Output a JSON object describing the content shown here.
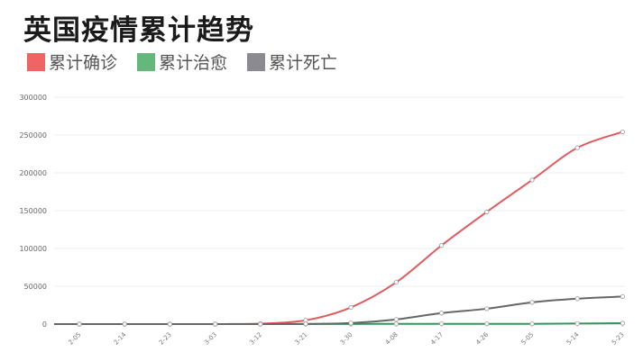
{
  "title": "英国疫情累计趋势",
  "legend": [
    {
      "label": "累计确诊",
      "color": "#f06464"
    },
    {
      "label": "累计治愈",
      "color": "#65b87b"
    },
    {
      "label": "累计死亡",
      "color": "#8a8a90"
    }
  ],
  "chart_data": {
    "type": "line",
    "title": "英国疫情累计趋势",
    "xlabel": "",
    "ylabel": "",
    "ylim": [
      0,
      300000
    ],
    "yticks": [
      0,
      50000,
      100000,
      150000,
      200000,
      250000,
      300000
    ],
    "xtick_labels": [
      "2-05",
      "2-14",
      "2-23",
      "3-03",
      "3-12",
      "3-21",
      "3-30",
      "4-08",
      "4-17",
      "4-26",
      "5-05",
      "5-14",
      "5-23"
    ],
    "grid": true,
    "legend_position": "top-left",
    "series": [
      {
        "name": "累计确诊",
        "color": "#e05a5e",
        "values": [
          0,
          8,
          9,
          23,
          590,
          5018,
          22141,
          55242,
          104000,
          148377,
          190584,
          233151,
          254195
        ]
      },
      {
        "name": "累计治愈",
        "color": "#2e9a5a",
        "values": [
          0,
          0,
          0,
          0,
          18,
          65,
          135,
          300,
          344,
          344,
          344,
          800,
          1200
        ]
      },
      {
        "name": "累计死亡",
        "color": "#666666",
        "values": [
          0,
          0,
          0,
          0,
          8,
          233,
          1408,
          6159,
          14576,
          20319,
          28734,
          33614,
          36393
        ]
      }
    ]
  }
}
